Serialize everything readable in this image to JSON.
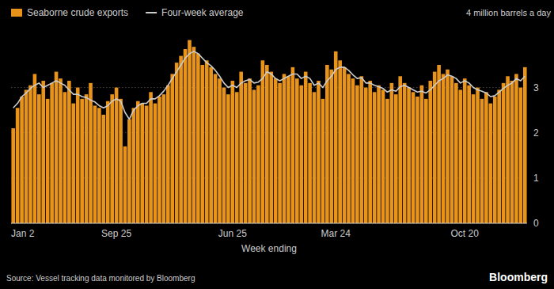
{
  "chart_data": {
    "type": "bar",
    "title": "4 million barrels a day",
    "x_label": "Week ending",
    "source": "Source: Vessel tracking data monitored by Bloomberg",
    "annotations": [
      "Bloomberg"
    ],
    "legend": "upper left",
    "grid": true,
    "ylim": [
      0,
      4.2
    ],
    "yticks": [
      0,
      1,
      2,
      3
    ],
    "categories": [
      "Jan 2",
      null,
      null,
      null,
      null,
      null,
      null,
      null,
      null,
      null,
      null,
      null,
      null,
      null,
      null,
      null,
      null,
      null,
      null,
      null,
      null,
      null,
      null,
      null,
      "Sep 25",
      null,
      null,
      null,
      null,
      null,
      null,
      null,
      null,
      null,
      null,
      null,
      null,
      null,
      null,
      null,
      null,
      null,
      null,
      null,
      null,
      null,
      null,
      null,
      null,
      null,
      null,
      "Jun 25",
      null,
      null,
      null,
      null,
      null,
      null,
      null,
      null,
      null,
      null,
      null,
      null,
      null,
      null,
      null,
      null,
      null,
      null,
      null,
      null,
      null,
      null,
      null,
      "Mar 24",
      null,
      null,
      null,
      null,
      null,
      null,
      null,
      null,
      null,
      null,
      null,
      null,
      null,
      null,
      null,
      null,
      null,
      null,
      null,
      null,
      null,
      null,
      null,
      null,
      null,
      null,
      null,
      null,
      null,
      "Oct 20",
      null,
      null,
      null,
      null,
      null,
      null,
      null,
      null,
      null,
      null,
      null,
      null,
      null,
      null
    ],
    "series": [
      {
        "name": "Seaborne crude exports",
        "type": "bar",
        "color": "#E8941A",
        "values": [
          2.1,
          2.55,
          2.8,
          2.95,
          3.05,
          3.3,
          2.85,
          3.15,
          2.75,
          3.1,
          3.35,
          3.2,
          2.9,
          3.15,
          2.65,
          3.0,
          2.75,
          2.85,
          3.1,
          2.6,
          2.55,
          2.4,
          2.7,
          2.85,
          3.0,
          2.75,
          1.7,
          2.3,
          2.55,
          2.7,
          2.65,
          2.6,
          2.9,
          2.65,
          2.8,
          2.85,
          3.05,
          3.3,
          3.55,
          3.7,
          3.85,
          4.05,
          3.9,
          3.75,
          3.5,
          3.6,
          3.45,
          3.3,
          3.2,
          3.0,
          2.85,
          3.15,
          2.9,
          3.35,
          3.1,
          3.2,
          2.95,
          3.05,
          3.6,
          3.5,
          3.35,
          3.2,
          3.1,
          3.3,
          3.25,
          3.45,
          3.2,
          3.05,
          3.35,
          3.1,
          2.9,
          3.15,
          2.75,
          3.5,
          3.4,
          3.8,
          3.6,
          3.45,
          3.3,
          3.2,
          3.05,
          3.25,
          3.0,
          3.15,
          2.9,
          3.05,
          2.95,
          2.75,
          3.1,
          2.85,
          3.25,
          3.1,
          3.0,
          2.9,
          2.8,
          3.05,
          2.75,
          3.15,
          3.35,
          3.5,
          3.3,
          3.4,
          3.25,
          3.1,
          2.95,
          3.2,
          3.05,
          2.85,
          3.0,
          2.75,
          2.9,
          2.65,
          2.8,
          2.95,
          3.1,
          3.25,
          3.15,
          3.3,
          3.0,
          3.45
        ]
      },
      {
        "name": "Four-week average",
        "type": "line",
        "color": "#CCCCCC",
        "values": [
          2.55,
          2.65,
          2.8,
          2.88,
          2.98,
          3.05,
          3.1,
          3.0,
          3.05,
          3.1,
          3.15,
          3.1,
          3.05,
          2.95,
          2.85,
          2.85,
          2.8,
          2.78,
          2.72,
          2.68,
          2.6,
          2.55,
          2.6,
          2.7,
          2.75,
          2.7,
          2.45,
          2.3,
          2.5,
          2.6,
          2.65,
          2.65,
          2.75,
          2.75,
          2.82,
          2.92,
          3.05,
          3.2,
          3.35,
          3.5,
          3.65,
          3.75,
          3.8,
          3.75,
          3.65,
          3.55,
          3.48,
          3.38,
          3.25,
          3.1,
          3.0,
          3.05,
          3.0,
          3.1,
          3.15,
          3.18,
          3.1,
          3.12,
          3.2,
          3.35,
          3.3,
          3.2,
          3.15,
          3.2,
          3.25,
          3.3,
          3.3,
          3.2,
          3.25,
          3.2,
          3.05,
          3.1,
          3.0,
          3.15,
          3.25,
          3.4,
          3.45,
          3.45,
          3.38,
          3.28,
          3.2,
          3.22,
          3.1,
          3.1,
          3.05,
          3.02,
          2.98,
          2.9,
          2.95,
          2.92,
          3.02,
          3.05,
          3.0,
          2.95,
          2.9,
          2.92,
          2.88,
          2.95,
          3.05,
          3.15,
          3.2,
          3.28,
          3.25,
          3.2,
          3.1,
          3.15,
          3.1,
          3.0,
          2.95,
          2.92,
          2.88,
          2.8,
          2.82,
          2.9,
          2.98,
          3.05,
          3.1,
          3.2,
          3.15,
          3.25
        ]
      }
    ]
  }
}
